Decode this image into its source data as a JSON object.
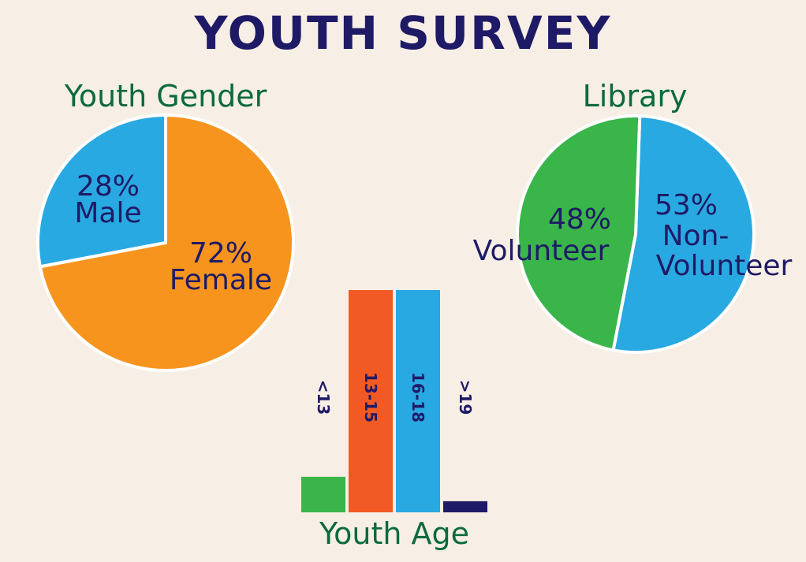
{
  "title": "YOUTH SURVEY",
  "chart_data": [
    {
      "type": "pie",
      "title": "Youth Gender",
      "slices": [
        {
          "pct": "28%",
          "label": "Male",
          "value": 28,
          "color": "#29a9e1"
        },
        {
          "pct": "72%",
          "label": "Female",
          "value": 72,
          "color": "#f7941e"
        }
      ]
    },
    {
      "type": "pie",
      "title": "Library",
      "slices": [
        {
          "pct": "53%",
          "label": "Non-Volunteer",
          "line1": "Non-",
          "line2": "Volunteer",
          "value": 53,
          "color": "#29a9e1"
        },
        {
          "pct": "48%",
          "label": "Volunteer",
          "value": 48,
          "color": "#39b54a"
        }
      ]
    },
    {
      "type": "bar",
      "title": "Youth Age",
      "categories": [
        "<13",
        "13-15",
        "16-18",
        ">19"
      ],
      "values": [
        16,
        100,
        100,
        5
      ],
      "colors": [
        "#39b54a",
        "#f15a24",
        "#29a9e1",
        "#1f1a66"
      ]
    }
  ]
}
